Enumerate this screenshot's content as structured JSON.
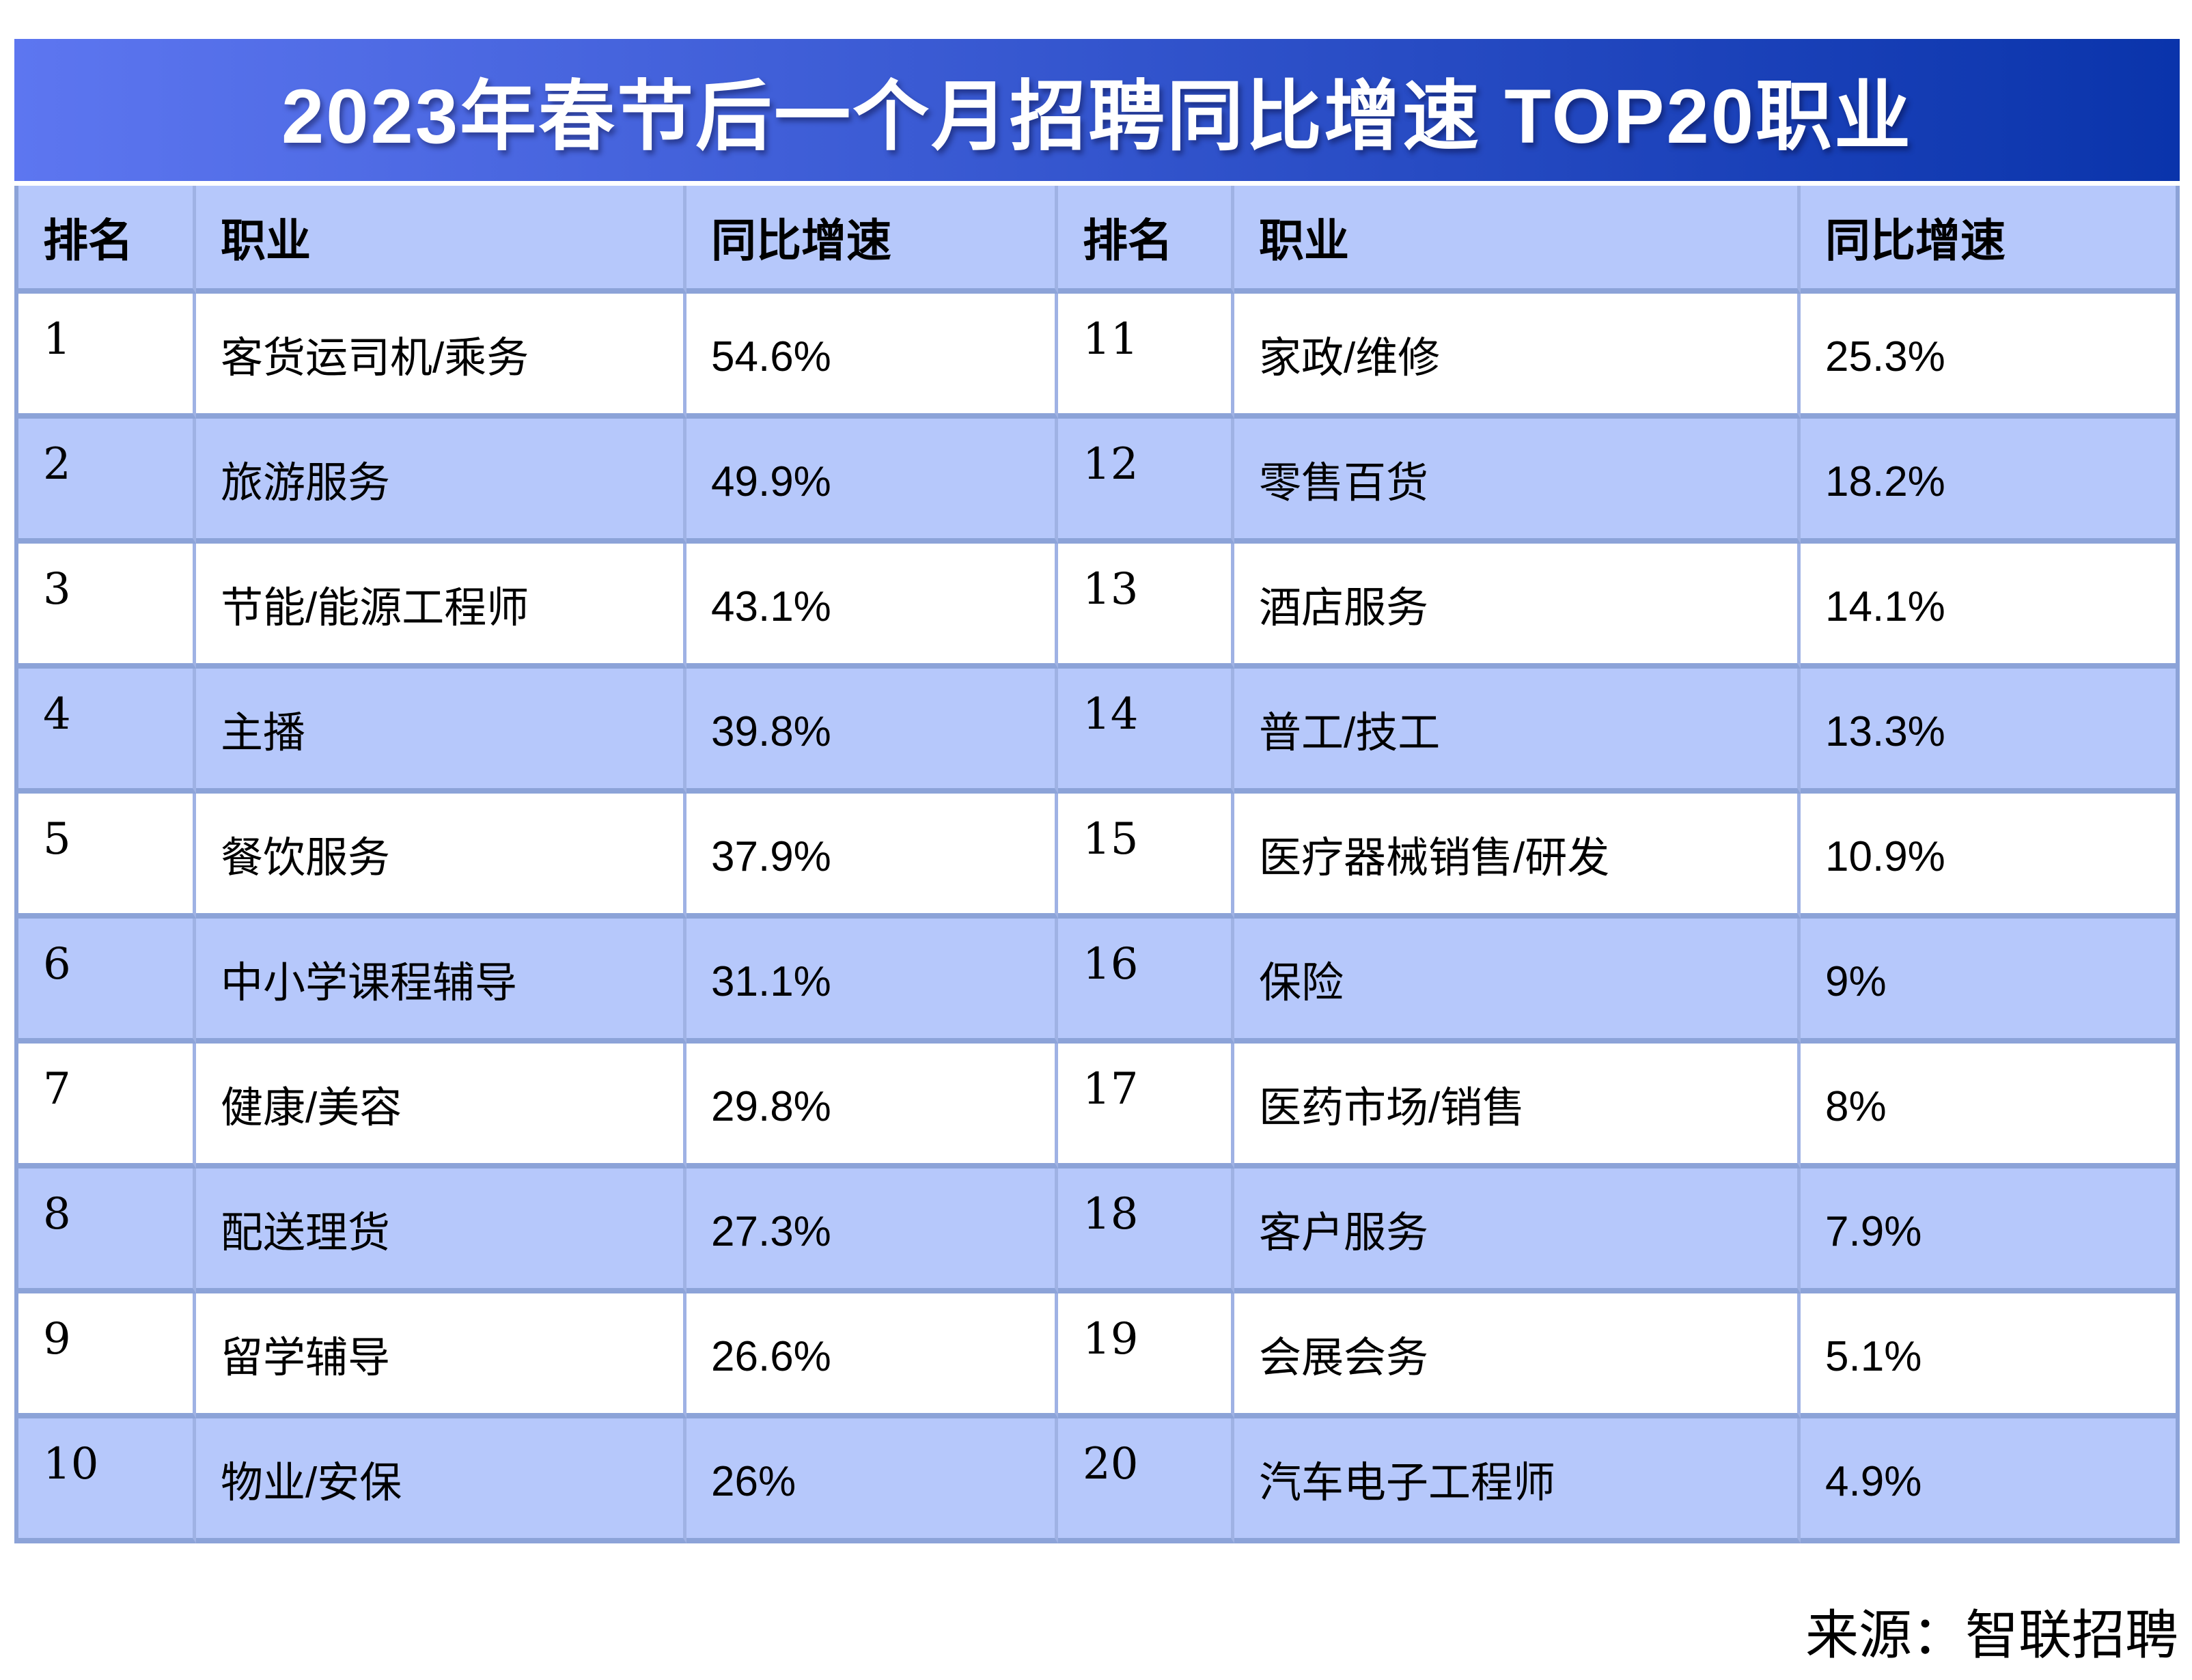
{
  "title": "2023年春节后一个月招聘同比增速 TOP20职业",
  "source": "来源：智联招聘",
  "table": {
    "headers": [
      "排名",
      "职业",
      "同比增速",
      "排名",
      "职业",
      "同比增速"
    ]
  },
  "colors": {
    "title_gradient_start": "#5d76f0",
    "title_gradient_end": "#0a34ab",
    "title_text": "#ffffff",
    "row_blue": "#b6c8fb",
    "row_white": "#ffffff",
    "grid_line_h": "#8ca3d8",
    "grid_line_v": "#9fb2e4",
    "text": "#000000"
  },
  "chart_data": {
    "type": "table",
    "title": "2023年春节后一个月招聘同比增速 TOP20职业",
    "columns": [
      "排名",
      "职业",
      "同比增速"
    ],
    "rows": [
      [
        1,
        "客货运司机/乘务",
        "54.6%"
      ],
      [
        2,
        "旅游服务",
        "49.9%"
      ],
      [
        3,
        "节能/能源工程师",
        "43.1%"
      ],
      [
        4,
        "主播",
        "39.8%"
      ],
      [
        5,
        "餐饮服务",
        "37.9%"
      ],
      [
        6,
        "中小学课程辅导",
        "31.1%"
      ],
      [
        7,
        "健康/美容",
        "29.8%"
      ],
      [
        8,
        "配送理货",
        "27.3%"
      ],
      [
        9,
        "留学辅导",
        "26.6%"
      ],
      [
        10,
        "物业/安保",
        "26%"
      ],
      [
        11,
        "家政/维修",
        "25.3%"
      ],
      [
        12,
        "零售百货",
        "18.2%"
      ],
      [
        13,
        "酒店服务",
        "14.1%"
      ],
      [
        14,
        "普工/技工",
        "13.3%"
      ],
      [
        15,
        "医疗器械销售/研发",
        "10.9%"
      ],
      [
        16,
        "保险",
        "9%"
      ],
      [
        17,
        "医药市场/销售",
        "8%"
      ],
      [
        18,
        "客户服务",
        "7.9%"
      ],
      [
        19,
        "会展会务",
        "5.1%"
      ],
      [
        20,
        "汽车电子工程师",
        "4.9%"
      ]
    ],
    "source": "来源：智联招聘",
    "layout": "two-panel: ranks 1-10 left, ranks 11-20 right, alternating white/blue rows"
  }
}
